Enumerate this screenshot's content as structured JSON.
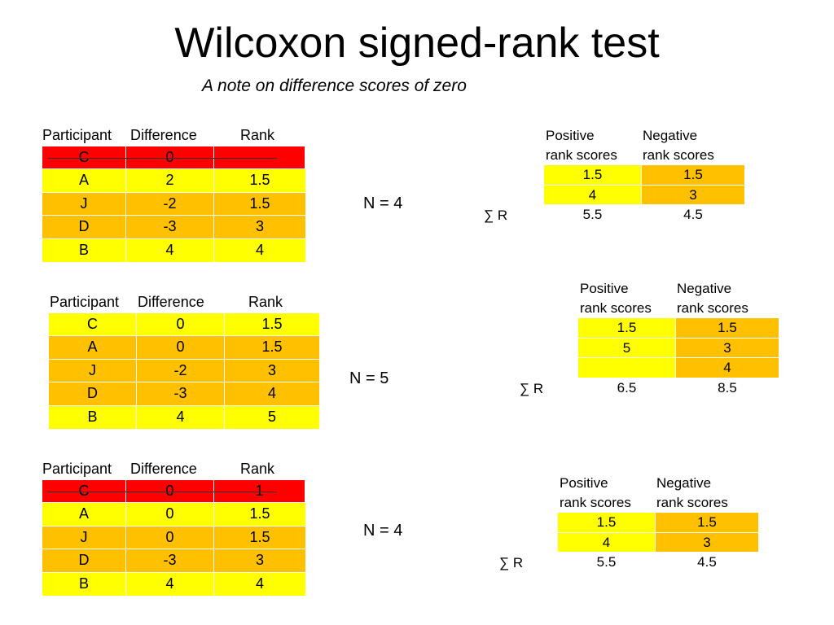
{
  "slide": {
    "title": "Wilcoxon signed-rank test",
    "subtitle": "A note on difference scores of zero"
  },
  "colors": {
    "red": "#ff0000",
    "yellow": "#ffff00",
    "orange": "#ffc000"
  },
  "left_header": {
    "participant": "Participant",
    "difference": "Difference",
    "rank": "Rank"
  },
  "right_header": {
    "positive": "Positive\nrank scores",
    "negative": "Negative\nrank scores"
  },
  "sum_label": "∑ R",
  "examples": [
    {
      "n_label": "N = 4",
      "rows": [
        {
          "participant": "C",
          "difference": "0",
          "rank": "",
          "color": "red",
          "struck": true
        },
        {
          "participant": "A",
          "difference": "2",
          "rank": "1.5",
          "color": "yellow"
        },
        {
          "participant": "J",
          "difference": "-2",
          "rank": "1.5",
          "color": "orange"
        },
        {
          "participant": "D",
          "difference": "-3",
          "rank": "3",
          "color": "orange"
        },
        {
          "participant": "B",
          "difference": "4",
          "rank": "4",
          "color": "yellow"
        }
      ],
      "rank_rows": [
        {
          "positive": "1.5",
          "negative": "1.5"
        },
        {
          "positive": "4",
          "negative": "3"
        }
      ],
      "sums": {
        "positive": "5.5",
        "negative": "4.5"
      }
    },
    {
      "n_label": "N = 5",
      "rows": [
        {
          "participant": "C",
          "difference": "0",
          "rank": "1.5",
          "color": "yellow"
        },
        {
          "participant": "A",
          "difference": "0",
          "rank": "1.5",
          "color": "orange"
        },
        {
          "participant": "J",
          "difference": "-2",
          "rank": "3",
          "color": "orange"
        },
        {
          "participant": "D",
          "difference": "-3",
          "rank": "4",
          "color": "orange"
        },
        {
          "participant": "B",
          "difference": "4",
          "rank": "5",
          "color": "yellow"
        }
      ],
      "rank_rows": [
        {
          "positive": "1.5",
          "negative": "1.5"
        },
        {
          "positive": "5",
          "negative": "3"
        },
        {
          "positive": "",
          "negative": "4"
        }
      ],
      "sums": {
        "positive": "6.5",
        "negative": "8.5"
      }
    },
    {
      "n_label": "N = 4",
      "rows": [
        {
          "participant": "C",
          "difference": "0",
          "rank": "1",
          "color": "red",
          "struck": true
        },
        {
          "participant": "A",
          "difference": "0",
          "rank": "1.5",
          "color": "yellow"
        },
        {
          "participant": "J",
          "difference": "0",
          "rank": "1.5",
          "color": "orange"
        },
        {
          "participant": "D",
          "difference": "-3",
          "rank": "3",
          "color": "orange"
        },
        {
          "participant": "B",
          "difference": "4",
          "rank": "4",
          "color": "yellow"
        }
      ],
      "rank_rows": [
        {
          "positive": "1.5",
          "negative": "1.5"
        },
        {
          "positive": "4",
          "negative": "3"
        }
      ],
      "sums": {
        "positive": "5.5",
        "negative": "4.5"
      }
    }
  ]
}
